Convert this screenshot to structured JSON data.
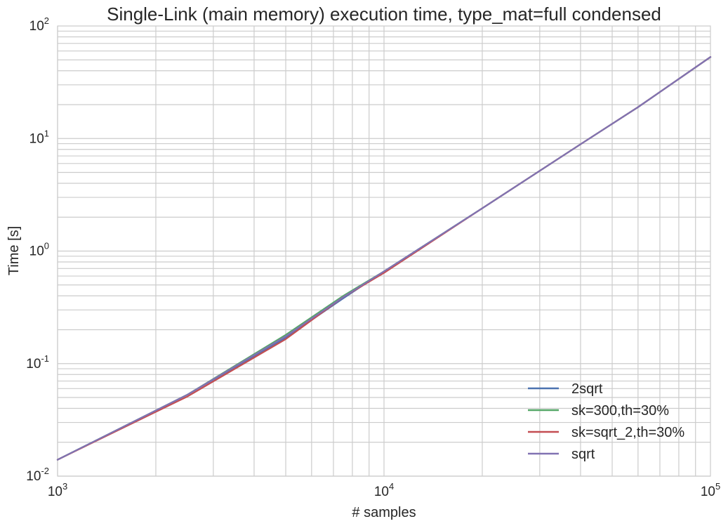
{
  "chart_data": {
    "type": "line",
    "title": "Single-Link (main memory) execution time, type_mat=full condensed",
    "xlabel": "# samples",
    "ylabel": "Time [s]",
    "xscale": "log",
    "yscale": "log",
    "xlim": [
      1000,
      100000
    ],
    "ylim": [
      0.01,
      100
    ],
    "grid": true,
    "legend_position": "bottom-right",
    "x_ticks": [
      {
        "base": "10",
        "exp": "3"
      },
      {
        "base": "10",
        "exp": "4"
      },
      {
        "base": "10",
        "exp": "5"
      }
    ],
    "y_ticks": [
      {
        "base": "10",
        "exp": "-2"
      },
      {
        "base": "10",
        "exp": "-1"
      },
      {
        "base": "10",
        "exp": "0"
      },
      {
        "base": "10",
        "exp": "1"
      },
      {
        "base": "10",
        "exp": "2"
      }
    ],
    "x": [
      1000,
      2500,
      5000,
      7500,
      10000,
      20000,
      40000,
      60000,
      100000
    ],
    "series": [
      {
        "name": "2sqrt",
        "color": "#4c72b0",
        "values": [
          0.014,
          0.053,
          0.17,
          0.38,
          0.66,
          2.4,
          8.9,
          19,
          53
        ]
      },
      {
        "name": "sk=300,th=30%",
        "color": "#55a868",
        "values": [
          0.014,
          0.053,
          0.18,
          0.4,
          0.66,
          2.4,
          8.9,
          19,
          53
        ]
      },
      {
        "name": "sk=sqrt_2,th=30%",
        "color": "#c44e52",
        "values": [
          0.014,
          0.051,
          0.165,
          0.39,
          0.64,
          2.4,
          8.9,
          19,
          53
        ]
      },
      {
        "name": "sqrt",
        "color": "#8172b2",
        "values": [
          0.014,
          0.053,
          0.175,
          0.39,
          0.66,
          2.4,
          8.9,
          19,
          53
        ]
      }
    ]
  }
}
